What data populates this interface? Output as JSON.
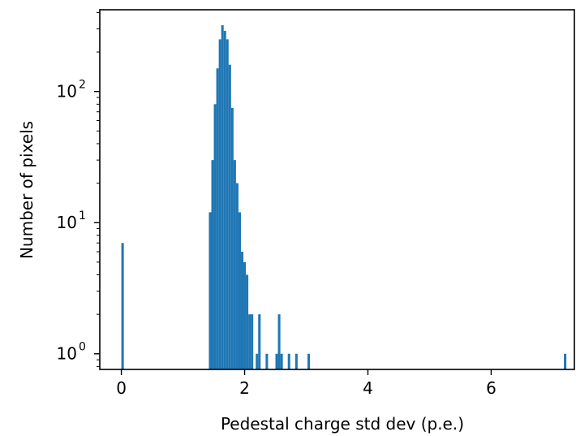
{
  "chart_data": {
    "type": "bar",
    "title": "",
    "xlabel": "Pedestal charge std dev (p.e.)",
    "ylabel": "Number of pixels",
    "xlim": [
      -0.35,
      7.35
    ],
    "ylim": [
      0.76,
      420
    ],
    "yscale": "log",
    "bin_width": 0.04,
    "bar_color": "#1f77b4",
    "xticks": [
      {
        "value": 0,
        "label": "0"
      },
      {
        "value": 2,
        "label": "2"
      },
      {
        "value": 4,
        "label": "4"
      },
      {
        "value": 6,
        "label": "6"
      }
    ],
    "yticks": [
      {
        "value": 1,
        "base": "10",
        "exp": "0"
      },
      {
        "value": 10,
        "base": "10",
        "exp": "1"
      },
      {
        "value": 100,
        "base": "10",
        "exp": "2"
      }
    ],
    "bins": [
      {
        "x": 0.0,
        "count": 7
      },
      {
        "x": 1.42,
        "count": 12
      },
      {
        "x": 1.46,
        "count": 30
      },
      {
        "x": 1.5,
        "count": 80
      },
      {
        "x": 1.54,
        "count": 150
      },
      {
        "x": 1.58,
        "count": 250
      },
      {
        "x": 1.62,
        "count": 320
      },
      {
        "x": 1.66,
        "count": 290
      },
      {
        "x": 1.7,
        "count": 250
      },
      {
        "x": 1.74,
        "count": 160
      },
      {
        "x": 1.78,
        "count": 75
      },
      {
        "x": 1.82,
        "count": 30
      },
      {
        "x": 1.86,
        "count": 20
      },
      {
        "x": 1.9,
        "count": 12
      },
      {
        "x": 1.94,
        "count": 6
      },
      {
        "x": 1.98,
        "count": 5
      },
      {
        "x": 2.02,
        "count": 4
      },
      {
        "x": 2.06,
        "count": 2
      },
      {
        "x": 2.1,
        "count": 2
      },
      {
        "x": 2.18,
        "count": 1
      },
      {
        "x": 2.22,
        "count": 2
      },
      {
        "x": 2.34,
        "count": 1
      },
      {
        "x": 2.5,
        "count": 1
      },
      {
        "x": 2.54,
        "count": 2
      },
      {
        "x": 2.58,
        "count": 1
      },
      {
        "x": 2.7,
        "count": 1
      },
      {
        "x": 2.82,
        "count": 1
      },
      {
        "x": 3.02,
        "count": 1
      },
      {
        "x": 7.18,
        "count": 1
      }
    ]
  }
}
